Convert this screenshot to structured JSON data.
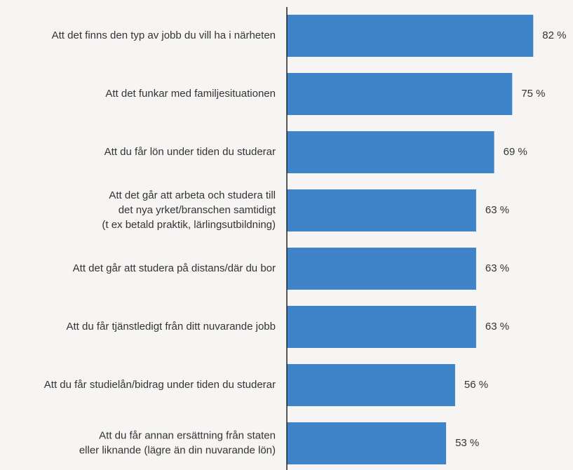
{
  "chart_data": {
    "type": "hbar",
    "categories": [
      "Att det finns den typ av jobb du vill ha i närheten",
      "Att det funkar med familjesituationen",
      "Att du får lön under tiden du studerar",
      "Att det går att arbeta och studera till\ndet nya yrket/branschen samtidigt\n(t ex betald praktik, lärlingsutbildning)",
      "Att det går att studera på distans/där du bor",
      "Att du får tjänstledigt från ditt nuvarande jobb",
      "Att du får studielån/bidrag under tiden du studerar",
      "Att du får annan ersättning från staten\neller liknande (lägre än din nuvarande lön)"
    ],
    "values": [
      82,
      75,
      69,
      63,
      63,
      63,
      56,
      53
    ],
    "value_labels": [
      "82 %",
      "75 %",
      "69 %",
      "63 %",
      "63 %",
      "63 %",
      "56 %",
      "53 %"
    ],
    "color": "#3f84c8",
    "xlim": [
      0,
      95
    ]
  }
}
